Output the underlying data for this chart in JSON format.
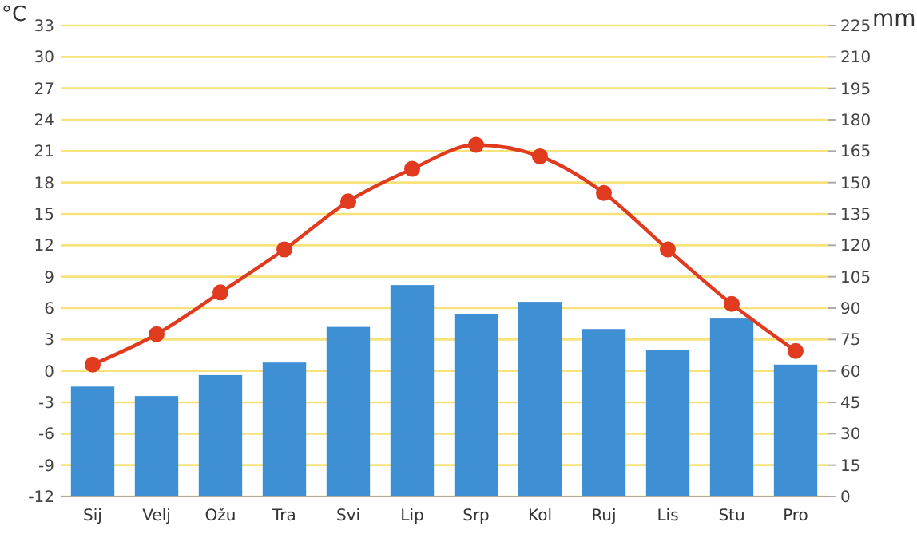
{
  "chart_data": {
    "type": "bar",
    "ylabel": "°C",
    "y2label": "mm",
    "categories": [
      "Sij",
      "Velj",
      "Ožu",
      "Tra",
      "Svi",
      "Lip",
      "Srp",
      "Kol",
      "Ruj",
      "Lis",
      "Stu",
      "Pro"
    ],
    "series": [
      {
        "axis": "y2",
        "color": "#3f8fd4",
        "values": [
          52.5,
          48,
          58,
          64,
          81,
          101,
          87,
          93,
          80,
          70,
          85,
          63
        ]
      },
      {
        "type": "line",
        "axis": "y",
        "color": "#e03a1f",
        "marker": "circle",
        "values": [
          0.6,
          3.5,
          7.5,
          11.6,
          16.2,
          19.3,
          21.6,
          20.5,
          17.0,
          11.6,
          6.4,
          1.9
        ]
      }
    ],
    "ylim": [
      -12,
      33
    ],
    "yticks": [
      -12,
      -9,
      -6,
      -3,
      0,
      3,
      6,
      9,
      12,
      15,
      18,
      21,
      24,
      27,
      30,
      33
    ],
    "y2lim": [
      0,
      225
    ],
    "y2ticks": [
      0,
      15,
      30,
      45,
      60,
      75,
      90,
      105,
      120,
      135,
      150,
      165,
      180,
      195,
      210,
      225
    ],
    "grid": "y"
  }
}
